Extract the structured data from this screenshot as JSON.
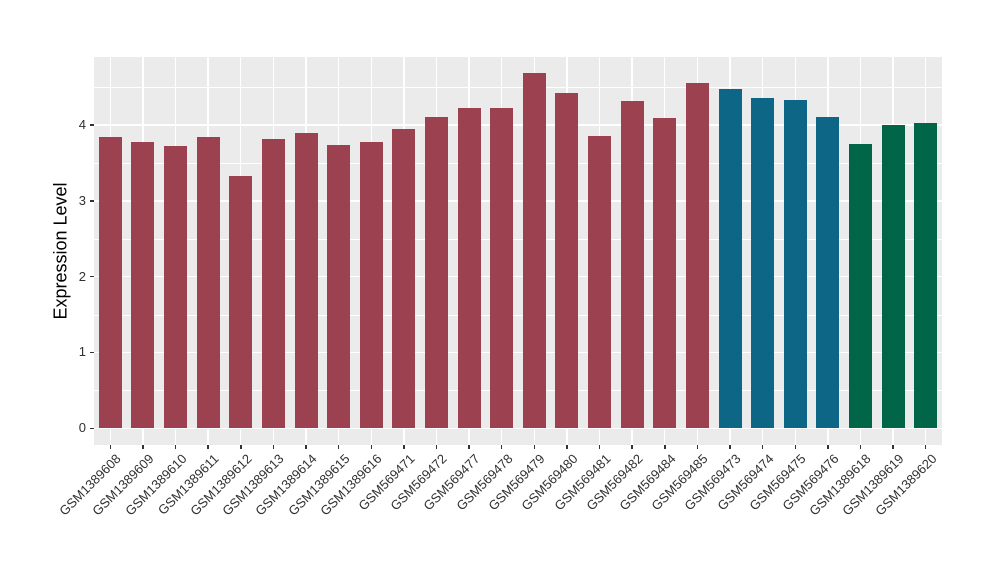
{
  "chart_data": {
    "type": "bar",
    "title": "",
    "xlabel": "",
    "ylabel": "Expression Level",
    "ylim": [
      0,
      4.9
    ],
    "yticks": [
      0,
      1,
      2,
      3,
      4
    ],
    "minor_yticks": [
      0.5,
      1.5,
      2.5,
      3.5,
      4.5
    ],
    "grid": "on",
    "legend_position": "none",
    "panel_background_color": "#EBEBEB",
    "gridline_color": "#FFFFFF",
    "axis_text_color": "#303030",
    "categories": [
      "GSM1389608",
      "GSM1389609",
      "GSM1389610",
      "GSM1389611",
      "GSM1389612",
      "GSM1389613",
      "GSM1389614",
      "GSM1389615",
      "GSM1389616",
      "GSM569471",
      "GSM569472",
      "GSM569477",
      "GSM569478",
      "GSM569479",
      "GSM569480",
      "GSM569481",
      "GSM569482",
      "GSM569484",
      "GSM569485",
      "GSM569473",
      "GSM569474",
      "GSM569475",
      "GSM569476",
      "GSM1389618",
      "GSM1389619",
      "GSM1389620"
    ],
    "values": [
      3.84,
      3.77,
      3.72,
      3.84,
      3.33,
      3.82,
      3.9,
      3.73,
      3.78,
      3.95,
      4.11,
      4.23,
      4.23,
      4.68,
      4.42,
      3.86,
      4.31,
      4.09,
      4.56,
      4.48,
      4.35,
      4.33,
      4.11,
      3.75,
      4.0,
      4.03
    ],
    "bar_colors": [
      "#9B4150",
      "#9B4150",
      "#9B4150",
      "#9B4150",
      "#9B4150",
      "#9B4150",
      "#9B4150",
      "#9B4150",
      "#9B4150",
      "#9B4150",
      "#9B4150",
      "#9B4150",
      "#9B4150",
      "#9B4150",
      "#9B4150",
      "#9B4150",
      "#9B4150",
      "#9B4150",
      "#9B4150",
      "#0E6687",
      "#0E6687",
      "#0E6687",
      "#0E6687",
      "#006647",
      "#006647",
      "#006647"
    ],
    "groups": [
      {
        "color": "#9B4150",
        "first_sample": "GSM1389608",
        "last_sample": "GSM569485",
        "count": 19
      },
      {
        "color": "#0E6687",
        "first_sample": "GSM569473",
        "last_sample": "GSM569476",
        "count": 4
      },
      {
        "color": "#006647",
        "first_sample": "GSM1389618",
        "last_sample": "GSM1389620",
        "count": 3
      }
    ]
  }
}
